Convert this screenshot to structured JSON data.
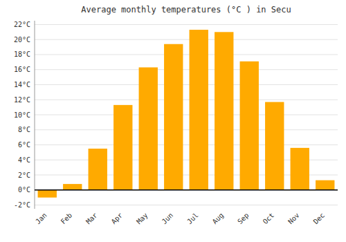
{
  "chart_data": {
    "type": "bar",
    "title": "Average monthly temperatures (°C ) in Secu",
    "categories": [
      "Jan",
      "Feb",
      "Mar",
      "Apr",
      "May",
      "Jun",
      "Jul",
      "Aug",
      "Sep",
      "Oct",
      "Nov",
      "Dec"
    ],
    "values": [
      -1.0,
      0.8,
      5.5,
      11.3,
      16.3,
      19.4,
      21.3,
      21.0,
      17.1,
      11.7,
      5.6,
      1.3
    ],
    "color": "#FFAA00",
    "ylim": [
      -2.5,
      22.5
    ],
    "yticks": [
      {
        "value": -2,
        "label": "-2°C"
      },
      {
        "value": 0,
        "label": "0°C"
      },
      {
        "value": 2,
        "label": "2°C"
      },
      {
        "value": 4,
        "label": "4°C"
      },
      {
        "value": 6,
        "label": "6°C"
      },
      {
        "value": 8,
        "label": "8°C"
      },
      {
        "value": 10,
        "label": "10°C"
      },
      {
        "value": 12,
        "label": "12°C"
      },
      {
        "value": 14,
        "label": "14°C"
      },
      {
        "value": 16,
        "label": "16°C"
      },
      {
        "value": 18,
        "label": "18°C"
      },
      {
        "value": 20,
        "label": "20°C"
      },
      {
        "value": 22,
        "label": "22°C"
      }
    ],
    "grid": true
  }
}
